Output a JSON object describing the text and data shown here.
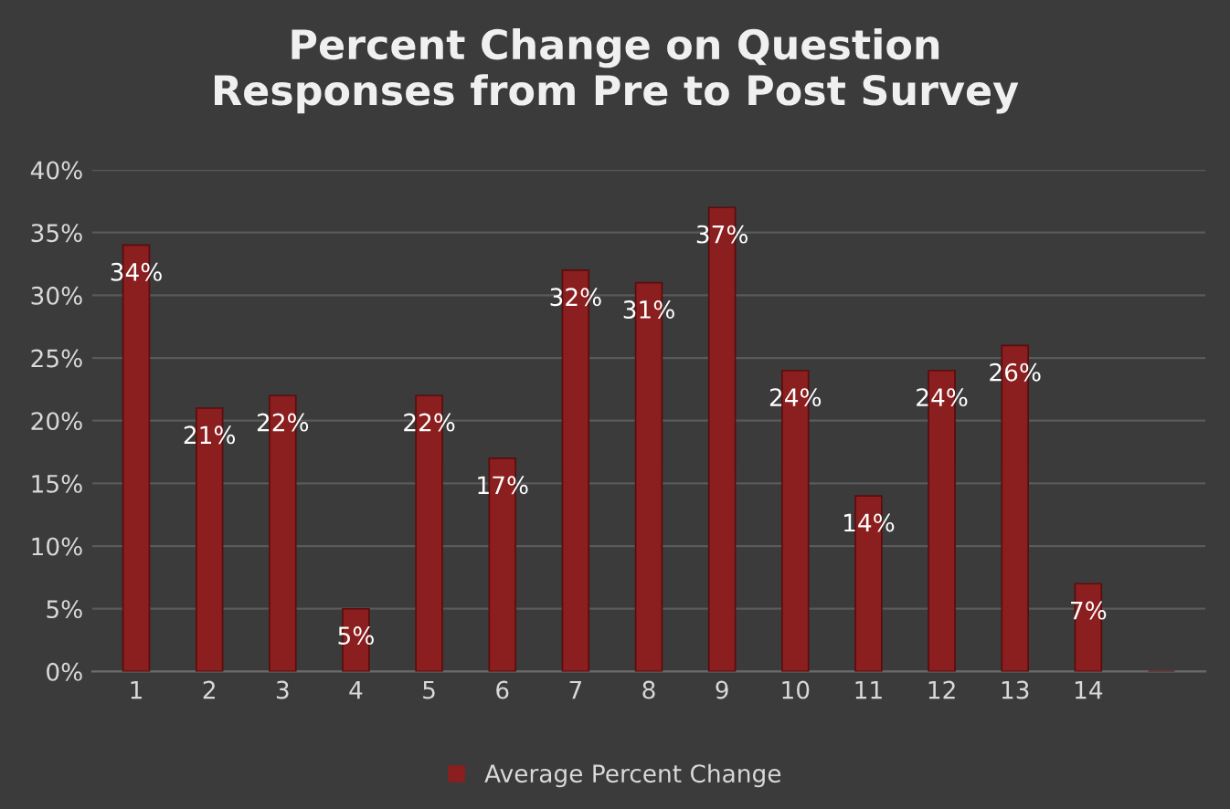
{
  "chart_data": {
    "type": "bar",
    "title": "Percent Change on Question\nResponses from Pre to Post Survey",
    "categories": [
      "1",
      "2",
      "3",
      "4",
      "5",
      "6",
      "7",
      "8",
      "9",
      "10",
      "11",
      "12",
      "13",
      "14",
      null
    ],
    "series": [
      {
        "name": "Average Percent Change",
        "color": "#8b1e1e",
        "values": [
          34,
          21,
          22,
          5,
          22,
          17,
          32,
          31,
          37,
          24,
          14,
          24,
          26,
          7,
          null
        ],
        "value_labels": [
          "34%",
          "21%",
          "22%",
          "5%",
          "22%",
          "17%",
          "32%",
          "31%",
          "37%",
          "24%",
          "14%",
          "24%",
          "26%",
          "7%",
          null
        ]
      }
    ],
    "ylim": [
      0,
      40
    ],
    "yticks": [
      {
        "value": 0,
        "label": "0%"
      },
      {
        "value": 5,
        "label": "5%"
      },
      {
        "value": 10,
        "label": "10%"
      },
      {
        "value": 15,
        "label": "15%"
      },
      {
        "value": 20,
        "label": "20%"
      },
      {
        "value": 25,
        "label": "25%"
      },
      {
        "value": 30,
        "label": "30%"
      },
      {
        "value": 35,
        "label": "35%"
      },
      {
        "value": 40,
        "label": "40%"
      }
    ],
    "grid": "y",
    "legend": "bottom"
  }
}
